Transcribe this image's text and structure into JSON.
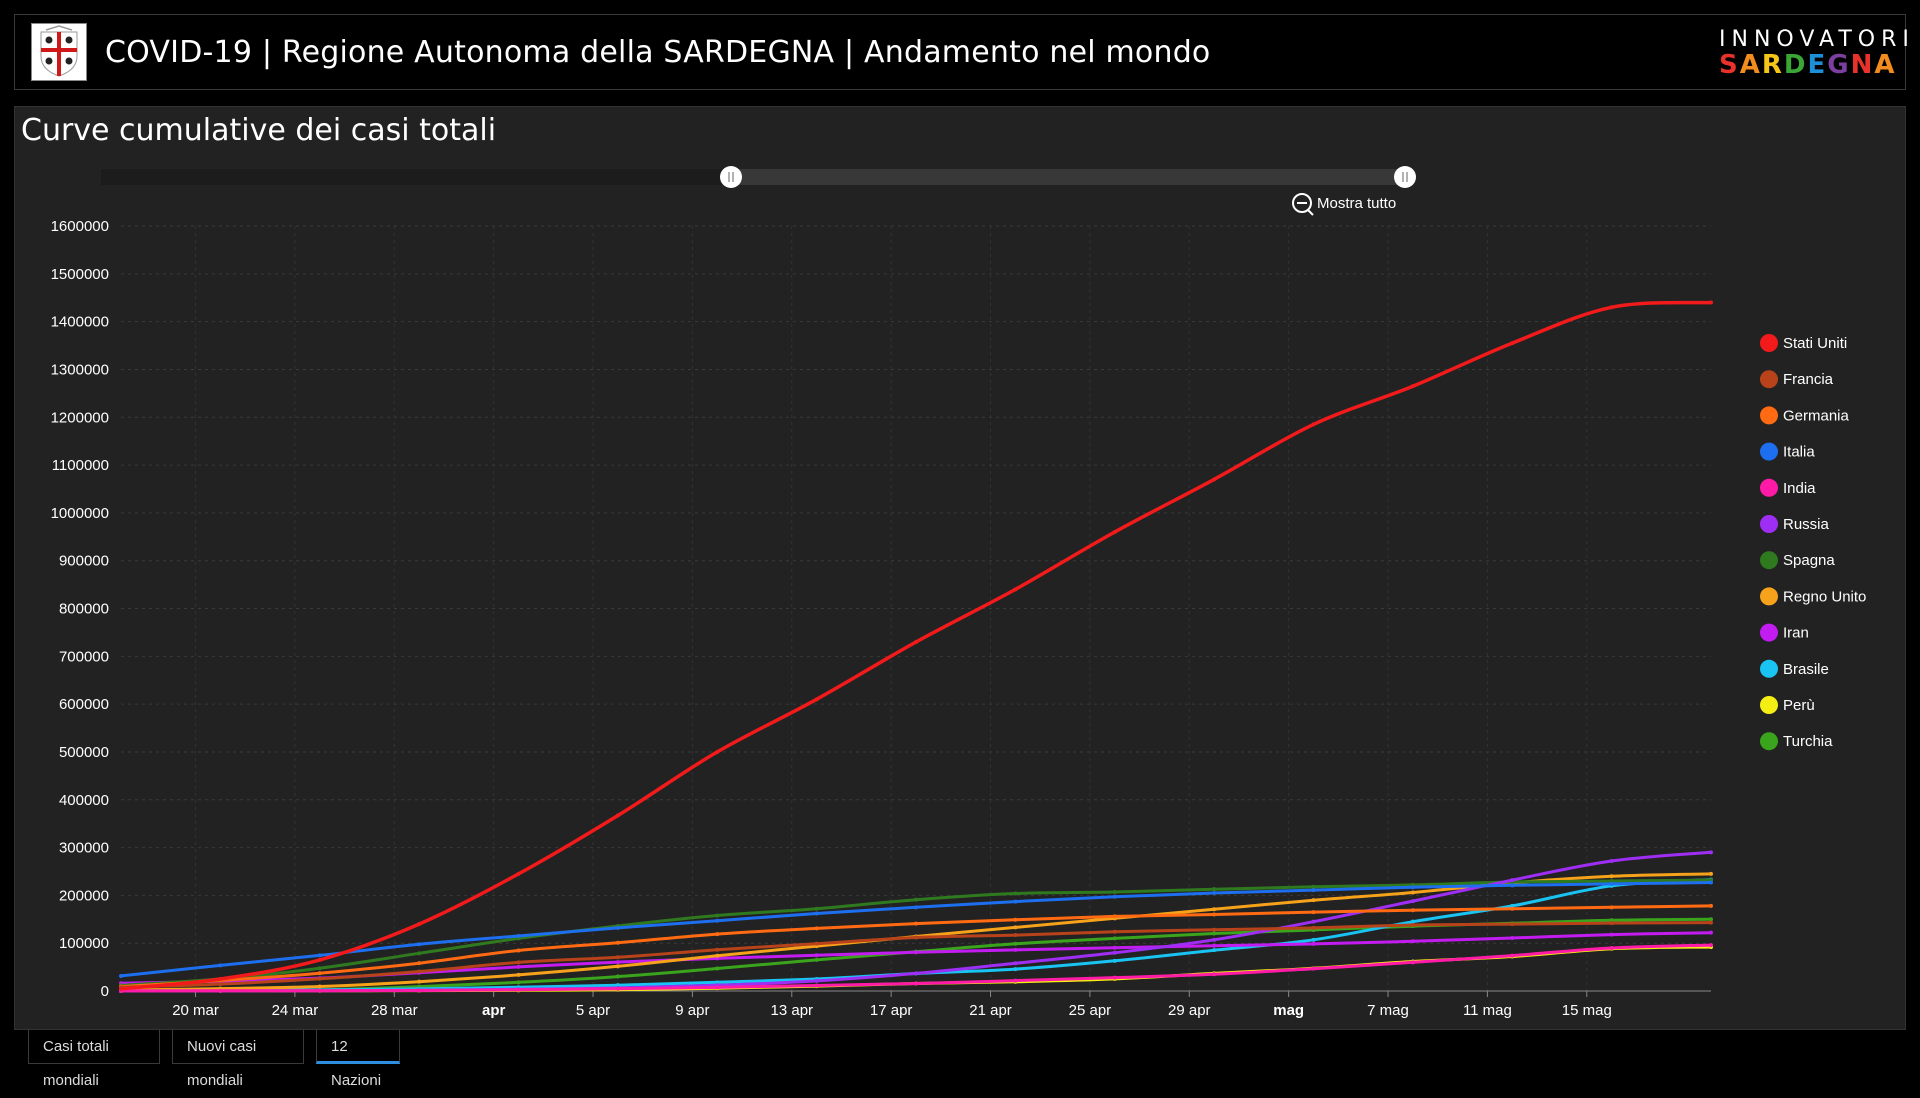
{
  "header": {
    "title": "COVID-19 | Regione Autonoma della SARDEGNA | Andamento nel mondo",
    "logo_line1": "INNOVATORI",
    "logo_line2": "SARDEGNA"
  },
  "panel": {
    "title": "Curve cumulative dei casi totali",
    "zoom_out_label": "Mostra tutto"
  },
  "tabs": [
    {
      "label": "Casi totali mondiali",
      "active": false
    },
    {
      "label": "Nuovi casi mondiali",
      "active": false
    },
    {
      "label": "12 Nazioni",
      "active": true
    }
  ],
  "chart_data": {
    "type": "line",
    "title": "Curve cumulative dei casi totali",
    "x_ticks": [
      "20 mar",
      "24 mar",
      "28 mar",
      "apr",
      "5 apr",
      "9 apr",
      "13 apr",
      "17 apr",
      "21 apr",
      "25 apr",
      "29 apr",
      "mag",
      "7 mag",
      "11 mag",
      "15 mag"
    ],
    "x_ticks_bold": [
      "apr",
      "mag"
    ],
    "y_ticks": [
      "0",
      "100000",
      "200000",
      "300000",
      "400000",
      "500000",
      "600000",
      "700000",
      "800000",
      "900000",
      "1000000",
      "1100000",
      "1200000",
      "1300000",
      "1400000",
      "1500000",
      "1600000"
    ],
    "ylim": [
      0,
      1600000
    ],
    "x_dates": [
      "2020-03-17",
      "2020-03-21",
      "2020-03-25",
      "2020-03-29",
      "2020-04-02",
      "2020-04-06",
      "2020-04-10",
      "2020-04-14",
      "2020-04-18",
      "2020-04-22",
      "2020-04-26",
      "2020-04-30",
      "2020-05-04",
      "2020-05-08",
      "2020-05-12",
      "2020-05-16",
      "2020-05-20"
    ],
    "grid": true,
    "legend_position": "right",
    "series": [
      {
        "name": "Stati Uniti",
        "color": "#f21a1a",
        "values": [
          4600,
          25000,
          65000,
          140000,
          245000,
          367000,
          500000,
          610000,
          730000,
          840000,
          960000,
          1070000,
          1185000,
          1265000,
          1355000,
          1430000,
          1440000
        ]
      },
      {
        "name": "Francia",
        "color": "#b8431a",
        "values": [
          7700,
          14400,
          25600,
          40700,
          59800,
          70500,
          86300,
          99000,
          112000,
          117000,
          124000,
          128000,
          132000,
          138000,
          140000,
          142000,
          143000
        ]
      },
      {
        "name": "Germania",
        "color": "#ff6a13",
        "values": [
          9300,
          22000,
          37300,
          58200,
          84800,
          101000,
          119000,
          131000,
          141000,
          149000,
          156000,
          160000,
          165000,
          169000,
          172000,
          175000,
          178000
        ]
      },
      {
        "name": "Italia",
        "color": "#1d6fef",
        "values": [
          31500,
          53600,
          74400,
          97700,
          115000,
          132000,
          147000,
          162000,
          175000,
          187000,
          197000,
          205000,
          211000,
          217000,
          221000,
          224000,
          227000
        ]
      },
      {
        "name": "India",
        "color": "#ff1aa8",
        "values": [
          140,
          330,
          660,
          1000,
          2500,
          4800,
          7500,
          11500,
          15700,
          21800,
          28000,
          35000,
          46700,
          60000,
          74000,
          90000,
          96000
        ]
      },
      {
        "name": "Russia",
        "color": "#9f2ef5",
        "values": [
          110,
          300,
          660,
          1500,
          3500,
          6300,
          11900,
          21100,
          36800,
          58000,
          80000,
          107000,
          145000,
          188000,
          232000,
          272000,
          290000
        ]
      },
      {
        "name": "Spagna",
        "color": "#2f7a1f",
        "values": [
          11700,
          25400,
          47600,
          78800,
          110000,
          136000,
          158000,
          172000,
          191000,
          204000,
          207000,
          213000,
          218000,
          222000,
          228000,
          230000,
          232000
        ]
      },
      {
        "name": "Regno Unito",
        "color": "#f6a21a",
        "values": [
          1950,
          5000,
          9500,
          19500,
          33700,
          51600,
          73800,
          93900,
          114000,
          133000,
          152000,
          171000,
          190000,
          206000,
          226000,
          240000,
          245000
        ]
      },
      {
        "name": "Iran",
        "color": "#c21cf0",
        "values": [
          16200,
          20600,
          27000,
          38300,
          50500,
          60500,
          68200,
          74900,
          80900,
          85900,
          90500,
          94600,
          98600,
          104000,
          110800,
          118000,
          122000
        ]
      },
      {
        "name": "Brasile",
        "color": "#19c3f2",
        "values": [
          300,
          1000,
          2400,
          4300,
          7900,
          12200,
          18100,
          25200,
          36600,
          45800,
          63100,
          85400,
          107000,
          145000,
          178000,
          220000,
          233000
        ]
      },
      {
        "name": "Perù",
        "color": "#f5ee14",
        "values": [
          90,
          300,
          480,
          850,
          1400,
          2800,
          5900,
          10300,
          15600,
          19300,
          25300,
          36900,
          47400,
          61800,
          72100,
          88500,
          92000
        ]
      },
      {
        "name": "Turchia",
        "color": "#3aa51c",
        "values": [
          100,
          950,
          2400,
          9200,
          18100,
          30200,
          47000,
          65100,
          82300,
          98700,
          110100,
          120200,
          127700,
          135600,
          141500,
          148000,
          150000
        ]
      }
    ]
  }
}
